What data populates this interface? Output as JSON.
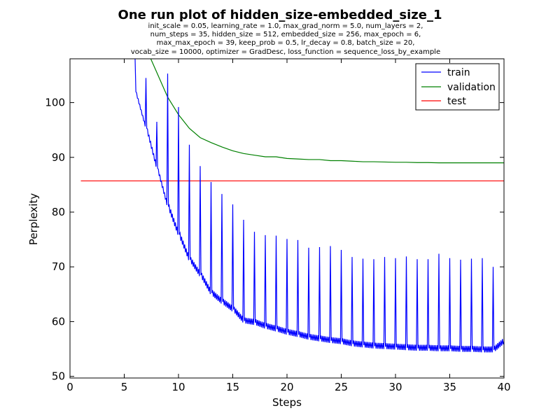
{
  "chart_data": {
    "type": "line",
    "title": "One run plot of hidden_size-embedded_size_1",
    "subtitle_lines": [
      "init_scale = 0.05, learning_rate = 1.0, max_grad_norm = 5.0, num_layers = 2,",
      "num_steps = 35, hidden_size = 512, embedded_size = 256, max_epoch = 6,",
      "max_max_epoch = 39, keep_prob = 0.5, lr_decay = 0.8, batch_size = 20,",
      "vocab_size = 10000, optimizer = GradDesc, loss_function = sequence_loss_by_example"
    ],
    "xlabel": "Steps",
    "ylabel": "Perplexity",
    "xlim": [
      0,
      40
    ],
    "ylim": [
      49.7,
      108
    ],
    "xticks": [
      0,
      5,
      10,
      15,
      20,
      25,
      30,
      35,
      40
    ],
    "yticks": [
      50,
      60,
      70,
      80,
      90,
      100
    ],
    "grid": false,
    "legend_position": "top-right",
    "series": [
      {
        "name": "train",
        "color": "#0000ff",
        "epoch_data": [
          {
            "epoch": 6,
            "peak": 108,
            "start": 102,
            "end": 106
          },
          {
            "epoch": 7,
            "peak": 104.5,
            "start": 95.3,
            "end": 96
          },
          {
            "epoch": 8,
            "peak": 96.5,
            "start": 88,
            "end": 88.5
          },
          {
            "epoch": 9,
            "peak": 105.3,
            "start": 81,
            "end": 84
          },
          {
            "epoch": 10,
            "peak": 99.2,
            "start": 75.9,
            "end": 78.5
          },
          {
            "epoch": 11,
            "peak": 92.3,
            "start": 71.3,
            "end": 72.5
          },
          {
            "epoch": 12,
            "peak": 88.4,
            "start": 68.5,
            "end": 69.5
          },
          {
            "epoch": 13,
            "peak": 85.5,
            "start": 65.2,
            "end": 66.5
          },
          {
            "epoch": 14,
            "peak": 83.3,
            "start": 63.6,
            "end": 64.2
          },
          {
            "epoch": 15,
            "peak": 81.4,
            "start": 62.2,
            "end": 62.5
          },
          {
            "epoch": 16,
            "peak": 78.6,
            "start": 60.1,
            "end": 61
          },
          {
            "epoch": 17,
            "peak": 76.4,
            "start": 59.8,
            "end": 60.1
          },
          {
            "epoch": 18,
            "peak": 75.8,
            "start": 59.1,
            "end": 59.5
          },
          {
            "epoch": 19,
            "peak": 75.7,
            "start": 58.6,
            "end": 58.9
          },
          {
            "epoch": 20,
            "peak": 75.1,
            "start": 58,
            "end": 58.3
          },
          {
            "epoch": 21,
            "peak": 74.9,
            "start": 57.6,
            "end": 57.9
          },
          {
            "epoch": 22,
            "peak": 73.5,
            "start": 57.1,
            "end": 57.5
          },
          {
            "epoch": 23,
            "peak": 73.6,
            "start": 56.8,
            "end": 57
          },
          {
            "epoch": 24,
            "peak": 73.8,
            "start": 56.5,
            "end": 56.7
          },
          {
            "epoch": 25,
            "peak": 73.1,
            "start": 56.3,
            "end": 56.5
          },
          {
            "epoch": 26,
            "peak": 71.8,
            "start": 55.9,
            "end": 56.2
          },
          {
            "epoch": 27,
            "peak": 71.5,
            "start": 55.7,
            "end": 56
          },
          {
            "epoch": 28,
            "peak": 71.4,
            "start": 55.5,
            "end": 55.8
          },
          {
            "epoch": 29,
            "peak": 71.8,
            "start": 55.4,
            "end": 55.7
          },
          {
            "epoch": 30,
            "peak": 71.6,
            "start": 55.3,
            "end": 55.6
          },
          {
            "epoch": 31,
            "peak": 71.9,
            "start": 55.2,
            "end": 55.5
          },
          {
            "epoch": 32,
            "peak": 71.4,
            "start": 55.1,
            "end": 55.4
          },
          {
            "epoch": 33,
            "peak": 71.4,
            "start": 55.1,
            "end": 55.3
          },
          {
            "epoch": 34,
            "peak": 72.4,
            "start": 55,
            "end": 55.3
          },
          {
            "epoch": 35,
            "peak": 71.6,
            "start": 55,
            "end": 55.2
          },
          {
            "epoch": 36,
            "peak": 71.3,
            "start": 54.9,
            "end": 55.2
          },
          {
            "epoch": 37,
            "peak": 71.5,
            "start": 54.9,
            "end": 55.2
          },
          {
            "epoch": 38,
            "peak": 71.6,
            "start": 54.8,
            "end": 55.1
          },
          {
            "epoch": 39,
            "peak": 70,
            "start": 54.8,
            "end": 56.4
          }
        ]
      },
      {
        "name": "validation",
        "color": "#008000",
        "x": [
          7,
          8,
          9,
          10,
          11,
          12,
          13,
          14,
          15,
          16,
          17,
          18,
          19,
          20,
          21,
          22,
          23,
          24,
          25,
          26,
          27,
          28,
          29,
          30,
          31,
          32,
          33,
          34,
          35,
          36,
          37,
          38,
          39,
          40
        ],
        "y": [
          110,
          105.5,
          101,
          97.8,
          95.3,
          93.6,
          92.7,
          91.9,
          91.2,
          90.7,
          90.4,
          90.1,
          90.1,
          89.8,
          89.7,
          89.6,
          89.6,
          89.4,
          89.4,
          89.3,
          89.2,
          89.2,
          89.15,
          89.1,
          89.1,
          89.05,
          89.05,
          89.0,
          89.0,
          89.0,
          89.0,
          89.0,
          89.0,
          89.0
        ]
      },
      {
        "name": "test",
        "color": "#ff0000",
        "x": [
          1,
          40
        ],
        "y": [
          85.7,
          85.7
        ]
      }
    ]
  }
}
